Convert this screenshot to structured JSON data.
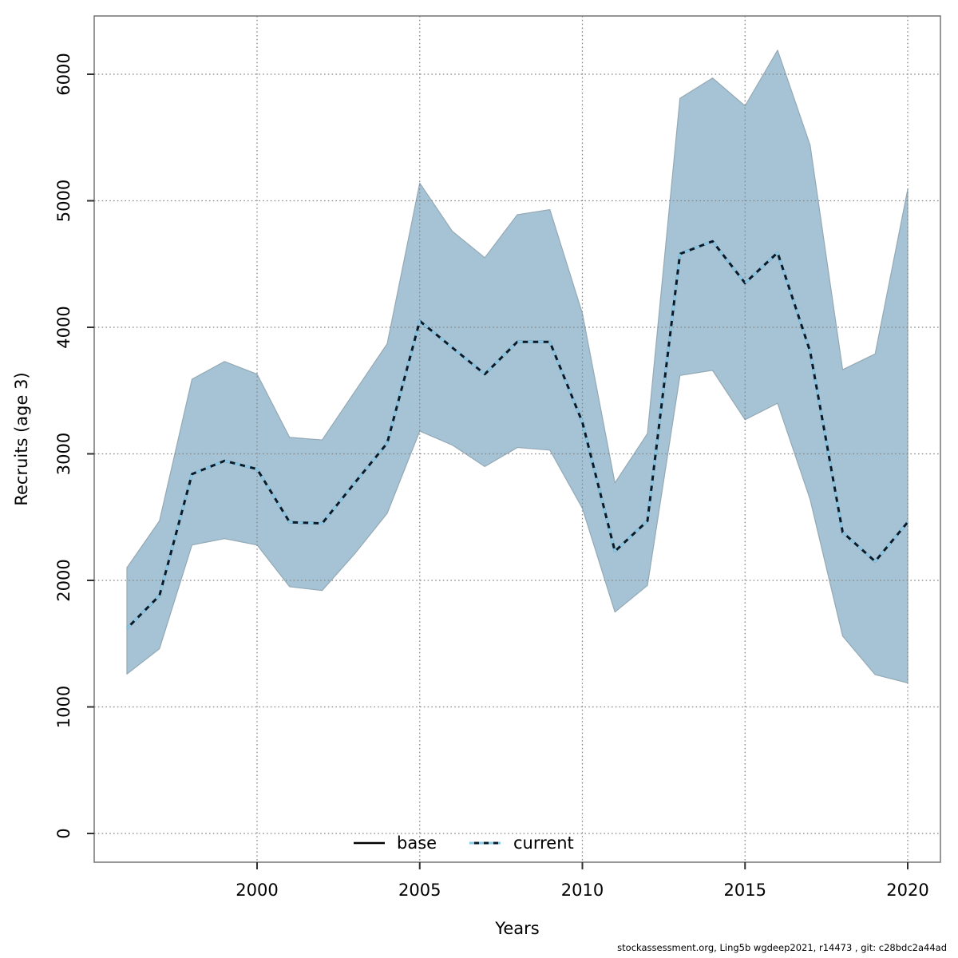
{
  "footer": "stockassessment.org, Ling5b wgdeep2021, r14473 , git: c28bdc2a44ad",
  "legend": [
    {
      "label": "base",
      "style": "solid",
      "color": "#000000"
    },
    {
      "label": "current",
      "style": "dotted",
      "color": "#8cc9e6"
    }
  ],
  "colors": {
    "band_fill": "#a5c3d5",
    "band_edge": "#94a9b5",
    "grid": "#848484",
    "frame": "#7d7d7d",
    "tick": "#303030",
    "line_dark": "#0a1a28",
    "line_light": "#8cc9e6"
  },
  "axes": {
    "x": {
      "label": "Years",
      "ticks": [
        {
          "value": 2000,
          "label": "2000"
        },
        {
          "value": 2005,
          "label": "2005"
        },
        {
          "value": 2010,
          "label": "2010"
        },
        {
          "value": 2015,
          "label": "2015"
        },
        {
          "value": 2020,
          "label": "2020"
        }
      ]
    },
    "y": {
      "label": "Recruits (age 3)",
      "ticks": [
        {
          "value": 0,
          "label": "0"
        },
        {
          "value": 1000,
          "label": "1000"
        },
        {
          "value": 2000,
          "label": "2000"
        },
        {
          "value": 3000,
          "label": "3000"
        },
        {
          "value": 4000,
          "label": "4000"
        },
        {
          "value": 5000,
          "label": "5000"
        },
        {
          "value": 6000,
          "label": "6000"
        }
      ]
    }
  },
  "chart_data": {
    "type": "line",
    "title": "",
    "xlabel": "Years",
    "ylabel": "Recruits (age 3)",
    "grid": true,
    "legend_position": "bottom-center",
    "x_range": [
      1995,
      2021
    ],
    "y_range": [
      -230,
      6460
    ],
    "x": [
      1996,
      1997,
      1998,
      1999,
      2000,
      2001,
      2002,
      2003,
      2004,
      2005,
      2006,
      2007,
      2008,
      2009,
      2010,
      2011,
      2012,
      2013,
      2014,
      2015,
      2016,
      2017,
      2018,
      2019,
      2020
    ],
    "series": [
      {
        "name": "base",
        "values": [
          1620,
          1880,
          2840,
          2945,
          2880,
          2460,
          2450,
          2770,
          3085,
          4050,
          3840,
          3630,
          3885,
          3885,
          3250,
          2230,
          2470,
          4580,
          4680,
          4350,
          4590,
          3810,
          2380,
          2150,
          2460
        ]
      },
      {
        "name": "current",
        "values": [
          1620,
          1880,
          2840,
          2945,
          2880,
          2460,
          2450,
          2770,
          3085,
          4050,
          3840,
          3630,
          3885,
          3885,
          3250,
          2230,
          2470,
          4580,
          4680,
          4350,
          4590,
          3810,
          2380,
          2150,
          2460
        ]
      }
    ],
    "band": {
      "name": "confidence-interval",
      "low": [
        1260,
        1460,
        2280,
        2330,
        2280,
        1950,
        1920,
        2210,
        2530,
        3180,
        3070,
        2900,
        3050,
        3030,
        2570,
        1750,
        1960,
        3620,
        3660,
        3270,
        3400,
        2640,
        1560,
        1255,
        1190
      ],
      "high": [
        2100,
        2470,
        3590,
        3730,
        3630,
        3130,
        3110,
        3490,
        3870,
        5140,
        4760,
        4550,
        4890,
        4930,
        4110,
        2770,
        3160,
        5810,
        5970,
        5750,
        6190,
        5440,
        3665,
        3790,
        5090
      ]
    }
  }
}
